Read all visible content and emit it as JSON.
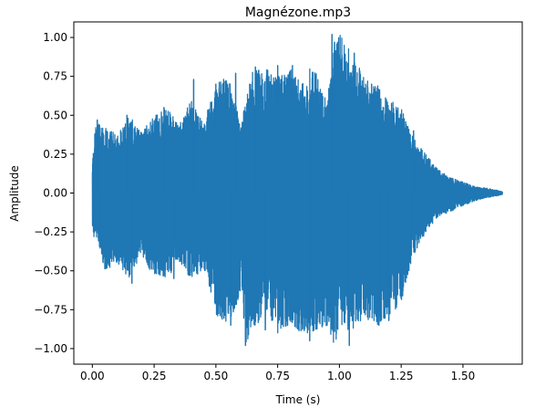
{
  "chart_data": {
    "type": "line",
    "title": "Magnézone.mp3",
    "xlabel": "Time (s)",
    "ylabel": "Amplitude",
    "xlim": [
      -0.075,
      1.74
    ],
    "ylim": [
      -1.1,
      1.1
    ],
    "x_ticks": [
      0.0,
      0.25,
      0.5,
      0.75,
      1.0,
      1.25,
      1.5
    ],
    "x_tick_labels": [
      "0.00",
      "0.25",
      "0.50",
      "0.75",
      "1.00",
      "1.25",
      "1.50"
    ],
    "y_ticks": [
      -1.0,
      -0.75,
      -0.5,
      -0.25,
      0.0,
      0.25,
      0.5,
      0.75,
      1.0
    ],
    "y_tick_labels": [
      "−1.00",
      "−0.75",
      "−0.50",
      "−0.25",
      "0.00",
      "0.25",
      "0.50",
      "0.75",
      "1.00"
    ],
    "grid": false,
    "legend": "none",
    "series": [
      {
        "color": "#1f77b4",
        "duration": 1.66,
        "envelope": {
          "x": [
            0.0,
            0.01,
            0.02,
            0.05,
            0.1,
            0.15,
            0.2,
            0.25,
            0.3,
            0.35,
            0.4,
            0.45,
            0.5,
            0.55,
            0.6,
            0.62,
            0.65,
            0.7,
            0.75,
            0.8,
            0.85,
            0.9,
            0.95,
            0.98,
            1.0,
            1.05,
            1.1,
            1.15,
            1.2,
            1.25,
            1.3,
            1.35,
            1.4,
            1.45,
            1.5,
            1.55,
            1.6,
            1.66
          ],
          "upper": [
            0.2,
            0.4,
            0.48,
            0.42,
            0.38,
            0.5,
            0.4,
            0.5,
            0.55,
            0.45,
            0.6,
            0.45,
            0.7,
            0.75,
            0.45,
            0.6,
            0.8,
            0.8,
            0.75,
            0.8,
            0.7,
            0.8,
            0.6,
            0.97,
            1.02,
            0.9,
            0.75,
            0.7,
            0.6,
            0.55,
            0.35,
            0.25,
            0.15,
            0.1,
            0.07,
            0.04,
            0.03,
            0.01
          ],
          "lower": [
            -0.2,
            -0.35,
            -0.28,
            -0.5,
            -0.45,
            -0.55,
            -0.4,
            -0.55,
            -0.55,
            -0.45,
            -0.55,
            -0.5,
            -0.78,
            -0.85,
            -0.65,
            -0.97,
            -0.9,
            -0.75,
            -0.9,
            -0.85,
            -0.9,
            -0.9,
            -0.85,
            -1.0,
            -0.85,
            -0.9,
            -0.8,
            -0.85,
            -0.8,
            -0.7,
            -0.4,
            -0.25,
            -0.15,
            -0.12,
            -0.08,
            -0.05,
            -0.03,
            -0.01
          ]
        },
        "spikes": [
          {
            "x": 0.02,
            "y": 0.47
          },
          {
            "x": 0.03,
            "y": -0.33
          },
          {
            "x": 0.14,
            "y": 0.5
          },
          {
            "x": 0.16,
            "y": -0.58
          },
          {
            "x": 0.29,
            "y": 0.55
          },
          {
            "x": 0.33,
            "y": -0.55
          },
          {
            "x": 0.41,
            "y": 0.73
          },
          {
            "x": 0.5,
            "y": 0.7
          },
          {
            "x": 0.51,
            "y": -0.69
          },
          {
            "x": 0.56,
            "y": -0.85
          },
          {
            "x": 0.58,
            "y": 0.77
          },
          {
            "x": 0.62,
            "y": -0.98
          },
          {
            "x": 0.66,
            "y": 0.81
          },
          {
            "x": 0.7,
            "y": -0.88
          },
          {
            "x": 0.75,
            "y": 0.82
          },
          {
            "x": 0.79,
            "y": -0.85
          },
          {
            "x": 0.81,
            "y": 0.82
          },
          {
            "x": 0.88,
            "y": 0.8
          },
          {
            "x": 0.88,
            "y": -0.95
          },
          {
            "x": 0.93,
            "y": -0.86
          },
          {
            "x": 0.97,
            "y": 1.02
          },
          {
            "x": 0.98,
            "y": 0.97
          },
          {
            "x": 1.04,
            "y": -0.98
          },
          {
            "x": 1.06,
            "y": 0.9
          },
          {
            "x": 1.13,
            "y": 0.7
          },
          {
            "x": 1.16,
            "y": -0.85
          },
          {
            "x": 1.2,
            "y": -0.82
          },
          {
            "x": 1.23,
            "y": 0.55
          },
          {
            "x": 1.29,
            "y": -0.4
          },
          {
            "x": 1.3,
            "y": 0.4
          }
        ]
      }
    ]
  }
}
